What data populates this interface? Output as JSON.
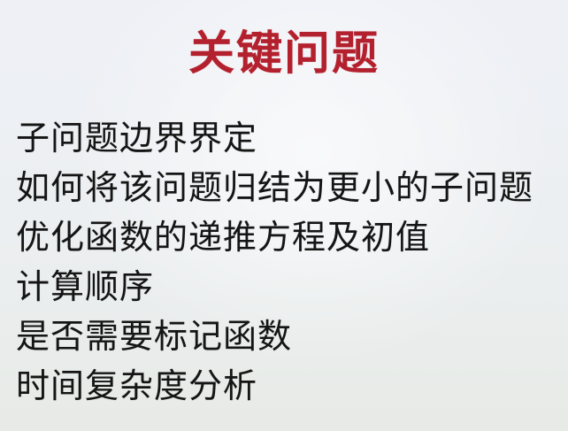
{
  "slide": {
    "title": "关键问题",
    "items": [
      "子问题边界界定",
      "如何将该问题归结为更小的子问题",
      "优化函数的递推方程及初值",
      "计算顺序",
      "是否需要标记函数",
      "时间复杂度分析"
    ],
    "colors": {
      "title": "#b4212e",
      "text": "#151515",
      "background": "#eceff1"
    }
  }
}
